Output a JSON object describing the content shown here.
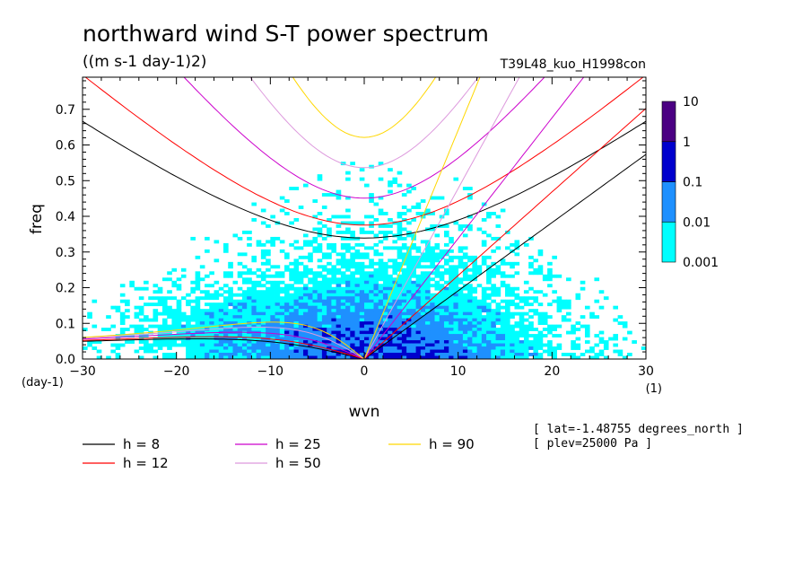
{
  "title": "northward wind S-T power spectrum",
  "units": "((m s-1 day-1)2)",
  "run_label": "T39L48_kuo_H1998con",
  "info": [
    "[ lat=-1.48755 degrees_north ]",
    "[ plev=25000 Pa ]"
  ],
  "chart_data": {
    "type": "heatmap",
    "xlabel": "wvn",
    "ylabel": "freq",
    "x_unit": "(1)",
    "y_unit": "(day-1)",
    "xlim": [
      -30,
      30
    ],
    "ylim": [
      0,
      0.79
    ],
    "x_ticks": [
      -30,
      -20,
      -10,
      0,
      10,
      20,
      30
    ],
    "y_ticks": [
      0.0,
      0.1,
      0.2,
      0.3,
      0.4,
      0.5,
      0.6,
      0.7
    ],
    "x_tick_labels": [
      "−30",
      "−20",
      "−10",
      "0",
      "10",
      "20",
      "30"
    ],
    "y_tick_labels": [
      "0.0",
      "0.1",
      "0.2",
      "0.3",
      "0.4",
      "0.5",
      "0.6",
      "0.7"
    ],
    "colorbar": {
      "levels": [
        0.001,
        0.01,
        0.1,
        1,
        10
      ],
      "labels": [
        "0.001",
        "0.01",
        "0.1",
        "1",
        "10"
      ],
      "colors": [
        "#00ffff",
        "#1e90ff",
        "#0000cd",
        "#4b0082"
      ]
    },
    "dispersion_curves": [
      {
        "name": "h =  8",
        "h": 8,
        "color": "#000000"
      },
      {
        "name": "h = 12",
        "h": 12,
        "color": "#ff0000"
      },
      {
        "name": "h = 25",
        "h": 25,
        "color": "#cc00cc"
      },
      {
        "name": "h = 50",
        "h": 50,
        "color": "#dd99dd"
      },
      {
        "name": "h = 90",
        "h": 90,
        "color": "#ffd700"
      }
    ]
  }
}
